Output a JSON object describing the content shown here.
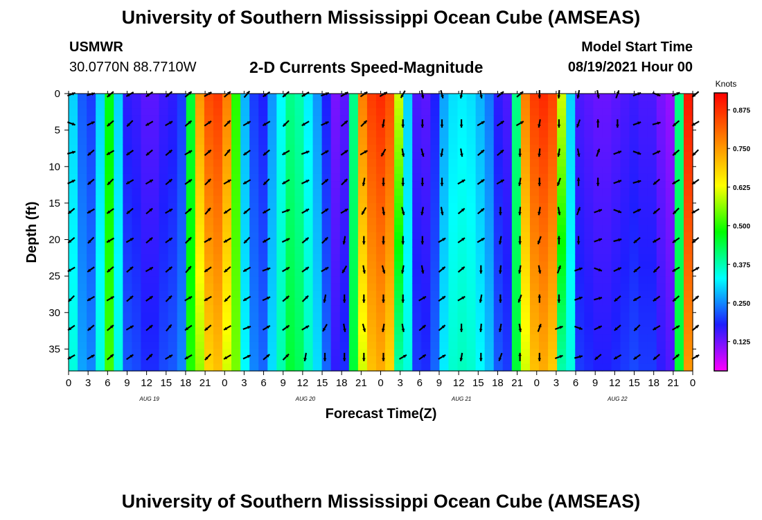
{
  "header": {
    "title_top": "University of Southern Mississippi Ocean Cube (AMSEAS)",
    "title_bottom": "University of Southern Mississippi Ocean Cube (AMSEAS)",
    "station": "USMWR",
    "coords": "30.0770N  88.7710W",
    "subtitle": "2-D Currents Speed-Magnitude",
    "model_start_label": "Model Start Time",
    "model_start_value": "08/19/2021 Hour 00"
  },
  "chart_data": {
    "type": "heatmap",
    "title": "2-D Currents Speed-Magnitude",
    "xlabel": "Forecast Time(Z)",
    "ylabel": "Depth (ft)",
    "x_hours_range": [
      0,
      96
    ],
    "y_range": [
      0,
      38
    ],
    "x_tick_labels": [
      "0",
      "3",
      "6",
      "9",
      "12",
      "15",
      "18",
      "21",
      "0",
      "3",
      "6",
      "9",
      "12",
      "15",
      "18",
      "21",
      "0",
      "3",
      "6",
      "9",
      "12",
      "15",
      "18",
      "21",
      "0",
      "3",
      "6",
      "9",
      "12",
      "15",
      "18",
      "21",
      "0"
    ],
    "y_ticks": [
      0,
      5,
      10,
      15,
      20,
      25,
      30,
      35
    ],
    "day_labels": [
      {
        "label": "AUG 19",
        "hour": 12
      },
      {
        "label": "AUG 20",
        "hour": 36
      },
      {
        "label": "AUG 21",
        "hour": 60
      },
      {
        "label": "AUG 22",
        "hour": 84
      }
    ],
    "colorbar": {
      "title": "Knots",
      "ticks": [
        "0.875",
        "0.750",
        "0.625",
        "0.500",
        "0.375",
        "0.250",
        "0.125"
      ],
      "tick_values": [
        0.875,
        0.75,
        0.625,
        0.5,
        0.375,
        0.25,
        0.125
      ],
      "range": [
        0.03,
        0.93
      ],
      "colors": [
        "#ff00ff",
        "#1e1eff",
        "#00ffff",
        "#00ff00",
        "#ffff00",
        "#ff8000",
        "#ff0000"
      ]
    },
    "speed_profile_surface": [
      0.3,
      0.22,
      0.2,
      0.3,
      0.47,
      0.3,
      0.17,
      0.16,
      0.14,
      0.14,
      0.16,
      0.17,
      0.2,
      0.45,
      0.75,
      0.84,
      0.86,
      0.78,
      0.5,
      0.28,
      0.2,
      0.18,
      0.26,
      0.33,
      0.4,
      0.38,
      0.32,
      0.26,
      0.18,
      0.12,
      0.14,
      0.4,
      0.78,
      0.86,
      0.88,
      0.84,
      0.6,
      0.3,
      0.15,
      0.14,
      0.18,
      0.27,
      0.31,
      0.32,
      0.31,
      0.28,
      0.24,
      0.17,
      0.15,
      0.4,
      0.78,
      0.86,
      0.88,
      0.85,
      0.6,
      0.3,
      0.15,
      0.14,
      0.13,
      0.13,
      0.14,
      0.15,
      0.16,
      0.15,
      0.15,
      0.12,
      0.1,
      0.4,
      0.9
    ],
    "arrow_angles_deg": [
      20,
      -20,
      15,
      25,
      -140,
      -140,
      -150,
      -135,
      -145,
      -150,
      -140,
      30,
      40,
      40,
      30,
      35,
      40,
      45,
      50,
      30,
      -145,
      -150,
      -140,
      -135,
      -150,
      -150,
      20,
      25,
      30,
      40,
      35,
      45,
      30,
      -100,
      -120,
      -90,
      -80,
      -90,
      -75,
      -90,
      -100,
      -90,
      -80,
      30,
      40,
      35,
      40,
      30,
      -90,
      -100,
      -95,
      -90,
      -100,
      -110,
      -80,
      90,
      70,
      -90,
      20
    ]
  }
}
